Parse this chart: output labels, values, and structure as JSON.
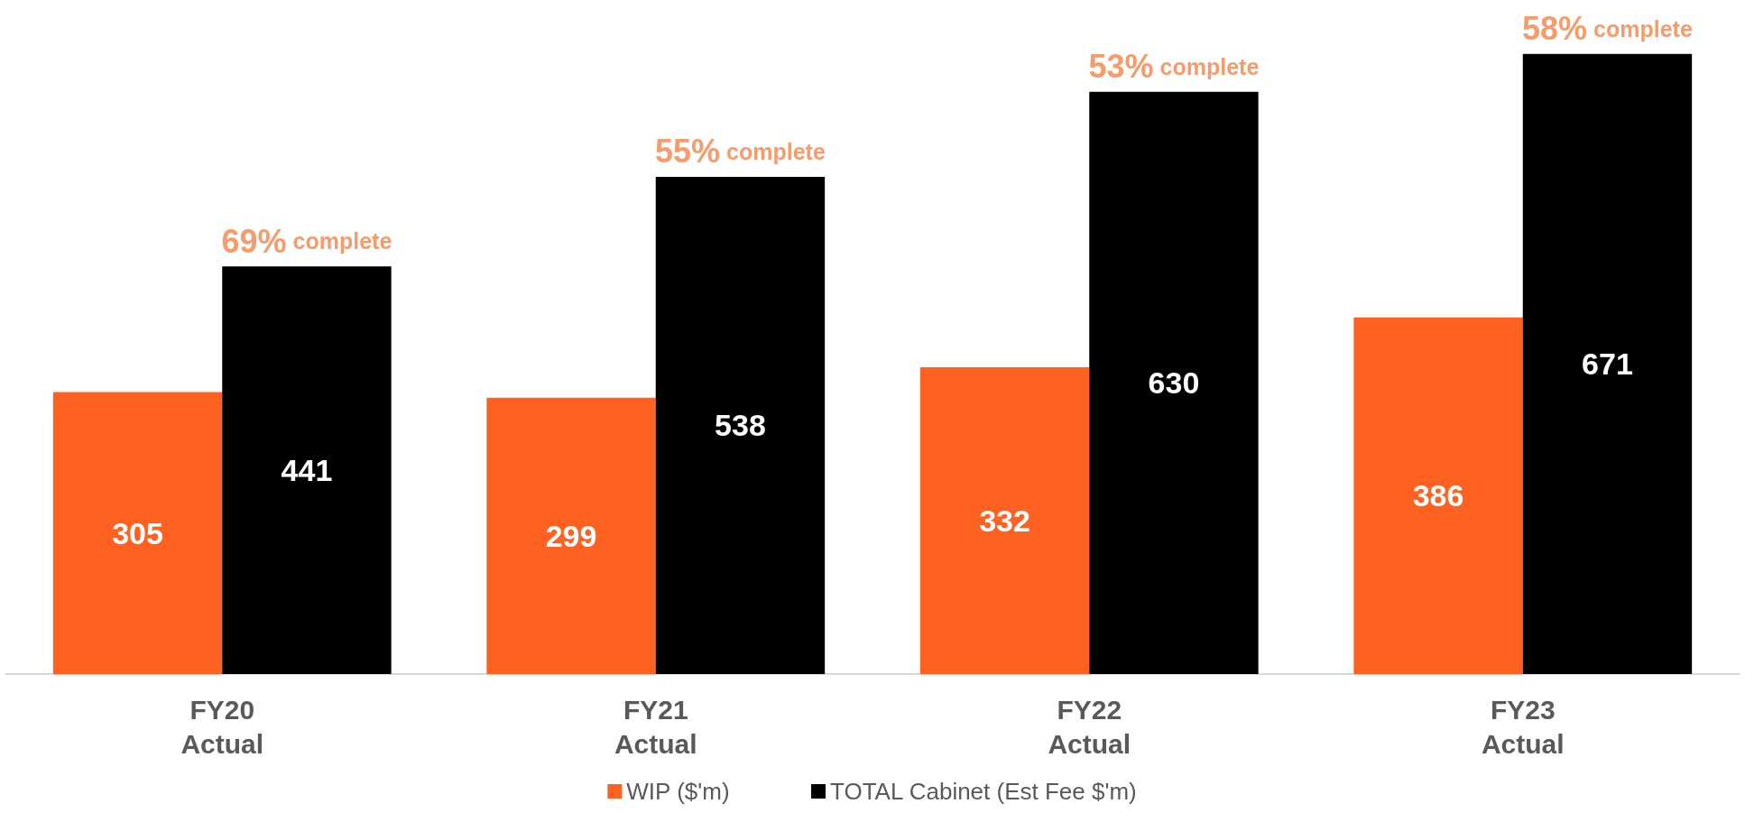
{
  "chart_data": {
    "type": "bar",
    "categories": [
      "FY20\nActual",
      "FY21\nActual",
      "FY22\nActual",
      "FY23\nActual"
    ],
    "series": [
      {
        "name": "WIP ($'m)",
        "color": "#ff6120",
        "values": [
          305,
          299,
          332,
          386
        ]
      },
      {
        "name": "TOTAL Cabinet (Est Fee $'m)",
        "color": "#000000",
        "values": [
          441,
          538,
          630,
          671
        ]
      }
    ],
    "data_labels": true,
    "legend": "bottom",
    "annotations": [
      {
        "text": "69% complete",
        "x": "FY20\nActual",
        "y": 441
      },
      {
        "text": "55% complete",
        "x": "FY21\nActual",
        "y": 538
      },
      {
        "text": "53% complete",
        "x": "FY22\nActual",
        "y": 630
      },
      {
        "text": "58% complete",
        "x": "FY23\nActual",
        "y": 671
      }
    ]
  }
}
